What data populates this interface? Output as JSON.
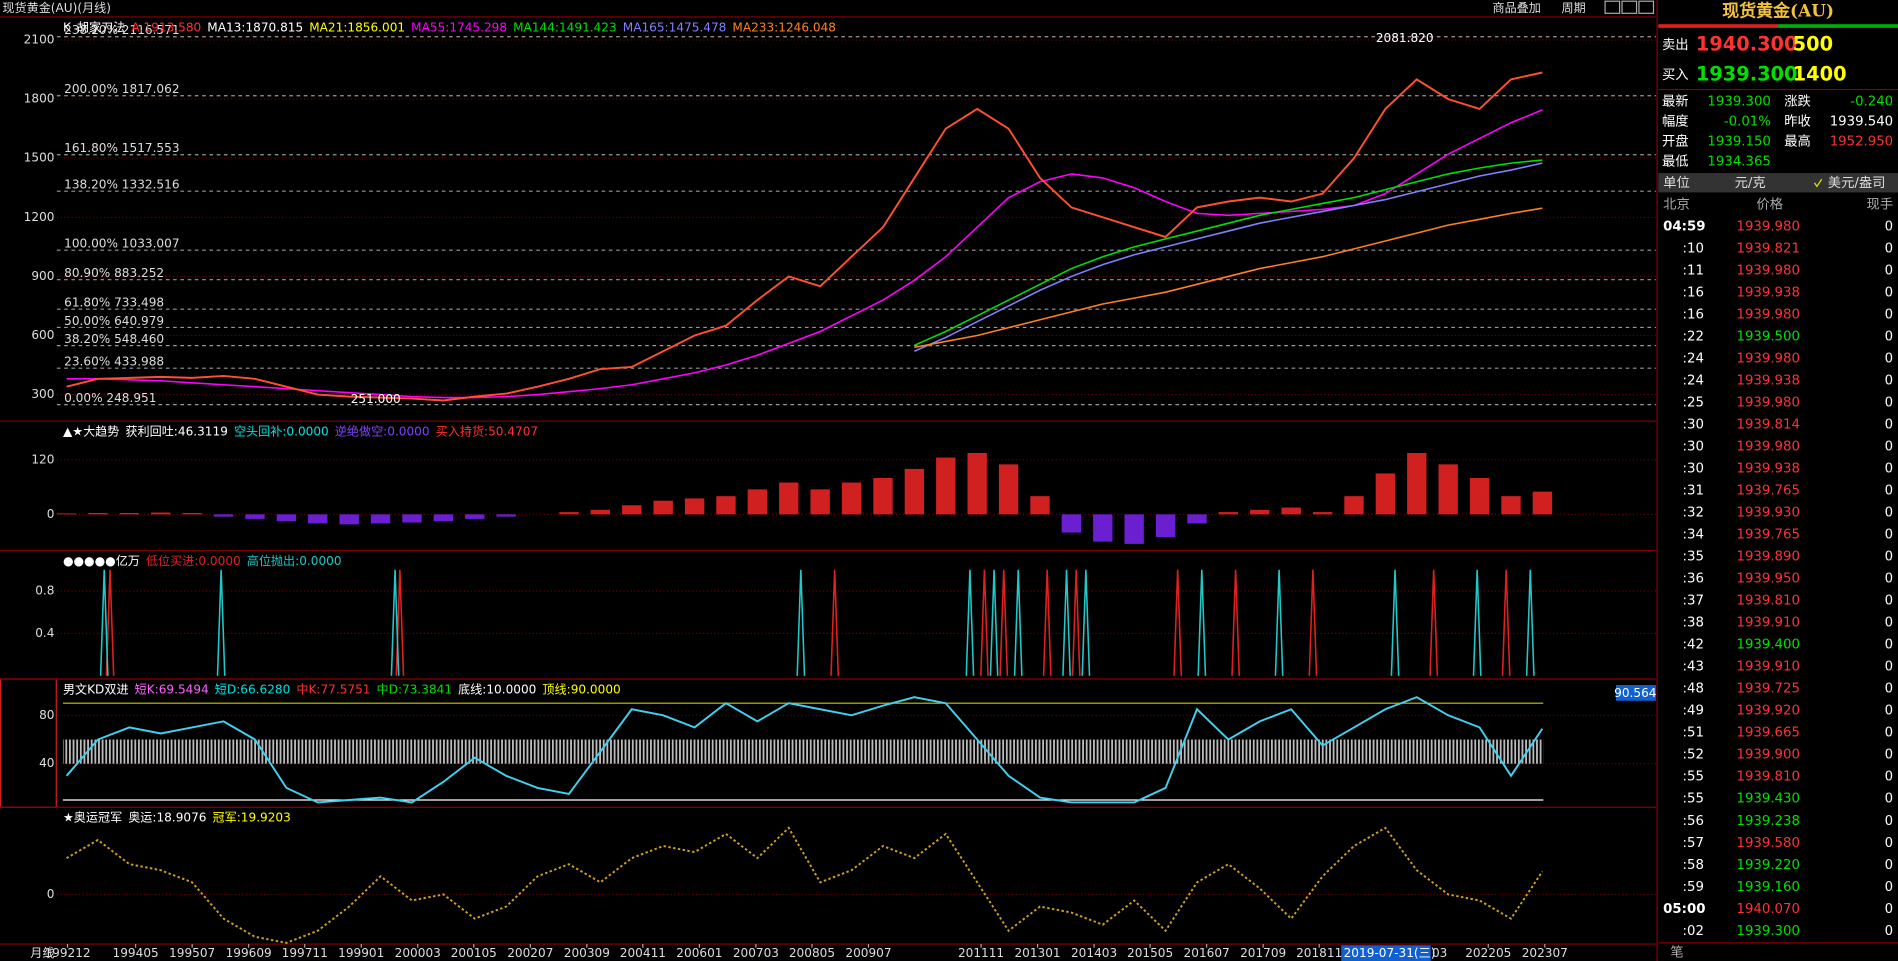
{
  "window": {
    "title": "现货黄金(AU)(月线)",
    "buttons": [
      "商品叠加",
      "周期"
    ]
  },
  "x_axis": {
    "label": "月线",
    "xlim": [
      1992.7,
      2025.8
    ],
    "x": [
      1992.9,
      1993.55,
      1994.2,
      1994.85,
      1995.5,
      1996.15,
      1996.8,
      1997.45,
      1998.1,
      1998.75,
      1999.4,
      2000.05,
      2000.7,
      2001.35,
      2002.0,
      2002.65,
      2003.3,
      2003.95,
      2004.6,
      2005.25,
      2005.9,
      2006.55,
      2007.2,
      2007.85,
      2008.5,
      2009.15,
      2009.8,
      2010.45,
      2011.1,
      2011.75,
      2012.4,
      2013.05,
      2013.7,
      2014.35,
      2015.0,
      2015.65,
      2016.3,
      2016.95,
      2017.6,
      2018.25,
      2018.9,
      2019.55,
      2020.2,
      2020.85,
      2021.5,
      2022.15,
      2022.8,
      2023.45
    ],
    "ticks": [
      {
        "value": 1992.92,
        "label": "199212"
      },
      {
        "value": 1994.33,
        "label": "199405"
      },
      {
        "value": 1995.5,
        "label": "199507"
      },
      {
        "value": 1996.67,
        "label": "199609"
      },
      {
        "value": 1997.83,
        "label": "199711"
      },
      {
        "value": 1999.0,
        "label": "199901"
      },
      {
        "value": 2000.17,
        "label": "200003"
      },
      {
        "value": 2001.33,
        "label": "200105"
      },
      {
        "value": 2002.5,
        "label": "200207"
      },
      {
        "value": 2003.67,
        "label": "200309"
      },
      {
        "value": 2004.83,
        "label": "200411"
      },
      {
        "value": 2006.0,
        "label": "200601"
      },
      {
        "value": 2007.17,
        "label": "200703"
      },
      {
        "value": 2008.33,
        "label": "200805"
      },
      {
        "value": 2009.5,
        "label": "200907"
      },
      {
        "value": 2011.83,
        "label": "201111"
      },
      {
        "value": 2013.0,
        "label": "201301"
      },
      {
        "value": 2014.17,
        "label": "201403"
      },
      {
        "value": 2015.33,
        "label": "201505"
      },
      {
        "value": 2016.5,
        "label": "201607"
      },
      {
        "value": 2017.67,
        "label": "201709"
      },
      {
        "value": 2018.83,
        "label": "201811"
      },
      {
        "value": 2022.33,
        "label": "202205"
      },
      {
        "value": 2023.5,
        "label": "202307"
      }
    ],
    "cursor": "2019-07-31(三)",
    "cursor_tail": "03"
  },
  "chart_data": [
    {
      "type": "line",
      "ylim": [
        165,
        2217
      ],
      "yticks": [
        300,
        600,
        900,
        1200,
        1500,
        1800,
        2100
      ],
      "header": [
        {
          "label": "K",
          "color": "#ffffff"
        },
        {
          "label": "胡家刀法",
          "color": "#ffffff"
        },
        {
          "label": "A:1913.580",
          "color": "#ff3030"
        },
        {
          "label": "MA13:1870.815",
          "color": "#ffffff"
        },
        {
          "label": "MA21:1856.001",
          "color": "#ffff00"
        }
      ],
      "color": "#ff5030",
      "values": [
        340,
        380,
        385,
        390,
        385,
        395,
        380,
        340,
        300,
        290,
        285,
        280,
        270,
        290,
        305,
        340,
        380,
        430,
        440,
        520,
        600,
        650,
        780,
        900,
        850,
        1000,
        1150,
        1400,
        1650,
        1750,
        1650,
        1400,
        1250,
        1200,
        1150,
        1100,
        1250,
        1280,
        1300,
        1280,
        1320,
        1500,
        1750,
        1900,
        1800,
        1750,
        1900,
        1935
      ],
      "series": [
        {
          "label": "MA55:1745.298",
          "color": "#ff00ff",
          "values": [
            380,
            380,
            375,
            370,
            360,
            350,
            340,
            330,
            320,
            310,
            300,
            290,
            285,
            285,
            290,
            300,
            315,
            330,
            350,
            380,
            410,
            450,
            500,
            560,
            620,
            700,
            780,
            880,
            1000,
            1150,
            1300,
            1380,
            1420,
            1400,
            1350,
            1280,
            1220,
            1210,
            1220,
            1230,
            1240,
            1260,
            1320,
            1420,
            1520,
            1600,
            1680,
            1745
          ]
        },
        {
          "label": "MA144:1491.423",
          "color": "#00e000",
          "values": [
            null,
            null,
            null,
            null,
            null,
            null,
            null,
            null,
            null,
            null,
            null,
            null,
            null,
            null,
            null,
            null,
            null,
            null,
            null,
            null,
            null,
            null,
            null,
            null,
            null,
            null,
            null,
            550,
            620,
            700,
            780,
            860,
            940,
            1000,
            1050,
            1090,
            1130,
            1170,
            1210,
            1240,
            1270,
            1300,
            1340,
            1380,
            1420,
            1450,
            1475,
            1491
          ]
        },
        {
          "label": "MA165:1475.478",
          "color": "#8080ff",
          "values": [
            null,
            null,
            null,
            null,
            null,
            null,
            null,
            null,
            null,
            null,
            null,
            null,
            null,
            null,
            null,
            null,
            null,
            null,
            null,
            null,
            null,
            null,
            null,
            null,
            null,
            null,
            null,
            520,
            590,
            670,
            750,
            830,
            900,
            960,
            1010,
            1050,
            1090,
            1130,
            1170,
            1200,
            1230,
            1260,
            1290,
            1330,
            1370,
            1410,
            1440,
            1475
          ]
        },
        {
          "label": "MA233:1246.048",
          "color": "#ff8020",
          "values": [
            null,
            null,
            null,
            null,
            null,
            null,
            null,
            null,
            null,
            null,
            null,
            null,
            null,
            null,
            null,
            null,
            null,
            null,
            null,
            null,
            null,
            null,
            null,
            null,
            null,
            null,
            null,
            540,
            570,
            600,
            640,
            680,
            720,
            760,
            790,
            820,
            860,
            900,
            940,
            970,
            1000,
            1040,
            1080,
            1120,
            1160,
            1190,
            1220,
            1246
          ]
        }
      ],
      "levels": [
        {
          "value": 2116.571,
          "label": "238.20% 2116.571"
        },
        {
          "value": 1817.062,
          "label": "200.00% 1817.062"
        },
        {
          "value": 1517.553,
          "label": "161.80% 1517.553"
        },
        {
          "value": 1332.516,
          "label": "138.20% 1332.516"
        },
        {
          "value": 1033.007,
          "label": "100.00% 1033.007"
        },
        {
          "value": 883.252,
          "label": "80.90% 883.252"
        },
        {
          "value": 733.498,
          "label": "61.80% 733.498"
        },
        {
          "value": 640.979,
          "label": "50.00% 640.979"
        },
        {
          "value": 548.46,
          "label": "38.20% 548.460"
        },
        {
          "value": 433.988,
          "label": "23.60% 433.988"
        },
        {
          "value": 248.951,
          "label": "0.00% 248.951"
        }
      ],
      "annotations": [
        {
          "label": "2081.820",
          "x": 2020.6,
          "y": 2081.82
        },
        {
          "label": "251.000",
          "x": 1999.3,
          "y": 251
        }
      ]
    },
    {
      "type": "bar",
      "ylim": [
        -80,
        205
      ],
      "yticks": [
        0,
        120
      ],
      "color": "#d02020",
      "negative_color": "#6a20d0",
      "header": [
        {
          "label": "▲★大趋势",
          "color": "#ffffff"
        },
        {
          "label": "获利回吐:46.3119",
          "color": "#ffffff"
        },
        {
          "label": "空头回补:0.0000",
          "color": "#00e0e0"
        },
        {
          "label": "逆绝做空:0.0000",
          "color": "#8040ff"
        },
        {
          "label": "买入持货:50.4707",
          "color": "#ff3030"
        }
      ],
      "values": [
        2,
        3,
        3,
        4,
        3,
        -5,
        -10,
        -15,
        -20,
        -22,
        -20,
        -18,
        -15,
        -10,
        -5,
        0,
        5,
        10,
        20,
        30,
        35,
        40,
        55,
        70,
        55,
        70,
        80,
        100,
        125,
        135,
        110,
        40,
        -40,
        -60,
        -65,
        -50,
        -20,
        5,
        10,
        15,
        5,
        40,
        90,
        135,
        110,
        80,
        40,
        50
      ]
    },
    {
      "type": "spike",
      "ylim": [
        -0.03,
        1.18
      ],
      "yticks": [
        0.4,
        0.8
      ],
      "header": [
        {
          "label": "●●●●●亿万",
          "color": "#ffffff"
        }
      ],
      "series": [
        {
          "label": "低位买进:0.0000",
          "color": "#e02020",
          "x": [
            1993.8,
            1999.8,
            2008.8,
            2011.9,
            2012.3,
            2013.2,
            2013.8,
            2015.9,
            2017.1,
            2018.7,
            2021.2,
            2022.7
          ],
          "values": [
            1,
            1,
            1,
            1,
            1,
            1,
            1,
            1,
            1,
            1,
            1,
            1
          ]
        },
        {
          "label": "高位抛出:0.0000",
          "color": "#20c8c8",
          "x": [
            1993.68,
            1996.1,
            1999.7,
            2008.1,
            2011.6,
            2012.1,
            2012.6,
            2013.6,
            2014.0,
            2016.4,
            2018.0,
            2020.4,
            2022.1,
            2023.2
          ],
          "values": [
            1,
            1,
            1,
            1,
            1,
            1,
            1,
            1,
            1,
            1,
            1,
            1,
            1,
            1
          ]
        }
      ]
    },
    {
      "type": "line",
      "ylim": [
        4,
        110
      ],
      "yticks": [
        40,
        80
      ],
      "color": "#40d0f0",
      "header": [
        {
          "label": "男文KD双进",
          "color": "#ffffff"
        },
        {
          "label": "短K:69.5494",
          "color": "#ff60ff"
        },
        {
          "label": "短D:66.6280",
          "color": "#00e0e0"
        },
        {
          "label": "中K:77.5751",
          "color": "#ff3030"
        },
        {
          "label": "中D:73.3841",
          "color": "#00e000"
        },
        {
          "label": "底线:10.0000",
          "color": "#ffffff"
        },
        {
          "label": "顶线:90.0000",
          "color": "#ffff00"
        }
      ],
      "hlines": [
        {
          "value": 90,
          "color": "#c8c800"
        },
        {
          "value": 10,
          "color": "#ffffff"
        }
      ],
      "badge": "90.564",
      "values": [
        30,
        60,
        70,
        65,
        70,
        75,
        60,
        20,
        8,
        10,
        12,
        8,
        25,
        45,
        30,
        20,
        15,
        50,
        85,
        80,
        70,
        90,
        75,
        90,
        85,
        80,
        88,
        95,
        90,
        60,
        30,
        12,
        8,
        8,
        8,
        20,
        85,
        60,
        75,
        85,
        55,
        70,
        85,
        95,
        80,
        70,
        30,
        69
      ]
    },
    {
      "type": "line",
      "ylim": [
        -41,
        72
      ],
      "yticks": [
        0
      ],
      "color": "#d0a020",
      "dashed": true,
      "header": [
        {
          "label": "★奥运冠军",
          "color": "#ffffff"
        },
        {
          "label": "奥运:18.9076",
          "color": "#ffffff"
        },
        {
          "label": "冠军:19.9203",
          "color": "#ffff00"
        }
      ],
      "values": [
        30,
        45,
        25,
        20,
        10,
        -20,
        -35,
        -40,
        -30,
        -10,
        15,
        -5,
        0,
        -20,
        -10,
        15,
        25,
        10,
        30,
        40,
        35,
        50,
        30,
        55,
        10,
        20,
        40,
        30,
        50,
        10,
        -30,
        -10,
        -15,
        -25,
        -5,
        -30,
        10,
        25,
        5,
        -20,
        15,
        40,
        55,
        20,
        0,
        -5,
        -20,
        19
      ]
    }
  ],
  "quote": {
    "title": "现货黄金(AU)",
    "sell": {
      "label": "卖出",
      "price": "1940.300",
      "volume": "500"
    },
    "buy": {
      "label": "买入",
      "price": "1939.300",
      "volume": "1400"
    },
    "stats": [
      {
        "label": "最新",
        "value": "1939.300",
        "color": "#00e000"
      },
      {
        "label": "涨跌",
        "value": "-0.240",
        "color": "#00e000"
      },
      {
        "label": "幅度",
        "value": "-0.01%",
        "color": "#00e000"
      },
      {
        "label": "昨收",
        "value": "1939.540",
        "color": "#ffffff"
      },
      {
        "label": "开盘",
        "value": "1939.150",
        "color": "#00e000"
      },
      {
        "label": "最高",
        "value": "1952.950",
        "color": "#ff3030"
      },
      {
        "label": "最低",
        "value": "1934.365",
        "color": "#00e000"
      }
    ],
    "unit": {
      "label": "单位",
      "value": "元/克",
      "option": "美元/盎司"
    },
    "columns": [
      "北京",
      "价格",
      "现手"
    ],
    "rows": [
      {
        "time": "04:59",
        "price": "1939.980",
        "volume": "0",
        "color": "#ff3232"
      },
      {
        "time": ":10",
        "price": "1939.821",
        "volume": "0",
        "color": "#ff3232"
      },
      {
        "time": ":11",
        "price": "1939.980",
        "volume": "0",
        "color": "#ff3232"
      },
      {
        "time": ":16",
        "price": "1939.938",
        "volume": "0",
        "color": "#ff3232"
      },
      {
        "time": ":16",
        "price": "1939.980",
        "volume": "0",
        "color": "#ff3232"
      },
      {
        "time": ":22",
        "price": "1939.500",
        "volume": "0",
        "color": "#00e000"
      },
      {
        "time": ":24",
        "price": "1939.980",
        "volume": "0",
        "color": "#ff3232"
      },
      {
        "time": ":24",
        "price": "1939.938",
        "volume": "0",
        "color": "#ff3232"
      },
      {
        "time": ":25",
        "price": "1939.980",
        "volume": "0",
        "color": "#ff3232"
      },
      {
        "time": ":30",
        "price": "1939.814",
        "volume": "0",
        "color": "#ff3232"
      },
      {
        "time": ":30",
        "price": "1939.980",
        "volume": "0",
        "color": "#ff3232"
      },
      {
        "time": ":30",
        "price": "1939.938",
        "volume": "0",
        "color": "#ff3232"
      },
      {
        "time": ":31",
        "price": "1939.765",
        "volume": "0",
        "color": "#ff3232"
      },
      {
        "time": ":32",
        "price": "1939.930",
        "volume": "0",
        "color": "#ff3232"
      },
      {
        "time": ":34",
        "price": "1939.765",
        "volume": "0",
        "color": "#ff3232"
      },
      {
        "time": ":35",
        "price": "1939.890",
        "volume": "0",
        "color": "#ff3232"
      },
      {
        "time": ":36",
        "price": "1939.950",
        "volume": "0",
        "color": "#ff3232"
      },
      {
        "time": ":37",
        "price": "1939.810",
        "volume": "0",
        "color": "#ff3232"
      },
      {
        "time": ":38",
        "price": "1939.910",
        "volume": "0",
        "color": "#ff3232"
      },
      {
        "time": ":42",
        "price": "1939.400",
        "volume": "0",
        "color": "#00e000"
      },
      {
        "time": ":43",
        "price": "1939.910",
        "volume": "0",
        "color": "#ff3232"
      },
      {
        "time": ":48",
        "price": "1939.725",
        "volume": "0",
        "color": "#ff3232"
      },
      {
        "time": ":49",
        "price": "1939.920",
        "volume": "0",
        "color": "#ff3232"
      },
      {
        "time": ":51",
        "price": "1939.665",
        "volume": "0",
        "color": "#ff3232"
      },
      {
        "time": ":52",
        "price": "1939.900",
        "volume": "0",
        "color": "#ff3232"
      },
      {
        "time": ":55",
        "price": "1939.810",
        "volume": "0",
        "color": "#ff3232"
      },
      {
        "time": ":55",
        "price": "1939.430",
        "volume": "0",
        "color": "#00e000"
      },
      {
        "time": ":56",
        "price": "1939.238",
        "volume": "0",
        "color": "#00e000"
      },
      {
        "time": ":57",
        "price": "1939.580",
        "volume": "0",
        "color": "#ff3232"
      },
      {
        "time": ":58",
        "price": "1939.220",
        "volume": "0",
        "color": "#00e000"
      },
      {
        "time": ":59",
        "price": "1939.160",
        "volume": "0",
        "color": "#00e000"
      },
      {
        "time": "05:00",
        "price": "1940.070",
        "volume": "0",
        "color": "#ff3232"
      },
      {
        "time": ":02",
        "price": "1939.300",
        "volume": "0",
        "color": "#00e000"
      }
    ],
    "footer": "笔"
  }
}
